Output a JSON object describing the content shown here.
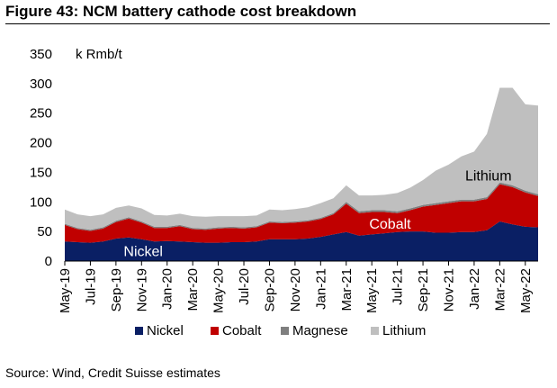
{
  "figure": {
    "title": "Figure 43: NCM battery cathode cost breakdown",
    "source": "Source: Wind, Credit Suisse estimates"
  },
  "chart_data": {
    "type": "area",
    "stacked": true,
    "unit_label": "k Rmb/t",
    "ylim": [
      0,
      350
    ],
    "y_ticks": [
      0,
      50,
      100,
      150,
      200,
      250,
      300,
      350
    ],
    "x_tick_labels": [
      "May-19",
      "Jul-19",
      "Sep-19",
      "Nov-19",
      "Jan-20",
      "Mar-20",
      "May-20",
      "Jul-20",
      "Sep-20",
      "Nov-20",
      "Jan-21",
      "Mar-21",
      "May-21",
      "Jul-21",
      "Sep-21",
      "Nov-21",
      "Jan-22",
      "Mar-22",
      "May-22"
    ],
    "x": [
      "May-19",
      "Jun-19",
      "Jul-19",
      "Aug-19",
      "Sep-19",
      "Oct-19",
      "Nov-19",
      "Dec-19",
      "Jan-20",
      "Feb-20",
      "Mar-20",
      "Apr-20",
      "May-20",
      "Jun-20",
      "Jul-20",
      "Aug-20",
      "Sep-20",
      "Oct-20",
      "Nov-20",
      "Dec-20",
      "Jan-21",
      "Feb-21",
      "Mar-21",
      "Apr-21",
      "May-21",
      "Jun-21",
      "Jul-21",
      "Aug-21",
      "Sep-21",
      "Oct-21",
      "Nov-21",
      "Dec-21",
      "Jan-22",
      "Feb-22",
      "Mar-22",
      "Apr-22",
      "May-22",
      "Jun-22"
    ],
    "series": [
      {
        "name": "Nickel",
        "color": "#0a1f64",
        "values": [
          33,
          32,
          31,
          33,
          38,
          40,
          37,
          33,
          34,
          33,
          32,
          31,
          31,
          32,
          32,
          33,
          37,
          37,
          37,
          38,
          41,
          45,
          49,
          43,
          45,
          47,
          49,
          50,
          50,
          48,
          48,
          49,
          49,
          52,
          67,
          62,
          58,
          57
        ]
      },
      {
        "name": "Cobalt",
        "color": "#c00000",
        "values": [
          28,
          22,
          20,
          22,
          28,
          32,
          28,
          23,
          22,
          26,
          22,
          22,
          24,
          24,
          23,
          24,
          28,
          27,
          28,
          29,
          30,
          34,
          48,
          38,
          38,
          36,
          32,
          36,
          42,
          47,
          50,
          52,
          52,
          53,
          63,
          63,
          58,
          53
        ]
      },
      {
        "name": "Magnese",
        "color": "#7f7f7f",
        "values": [
          2,
          2,
          2,
          2,
          2,
          2,
          2,
          2,
          2,
          2,
          2,
          2,
          2,
          2,
          2,
          2,
          2,
          2,
          2,
          2,
          2,
          2,
          3,
          3,
          3,
          3,
          3,
          3,
          3,
          3,
          3,
          3,
          3,
          3,
          3,
          3,
          3,
          3
        ]
      },
      {
        "name": "Lithium",
        "color": "#bfbfbf",
        "values": [
          24,
          23,
          23,
          22,
          22,
          20,
          22,
          20,
          19,
          19,
          20,
          20,
          19,
          18,
          19,
          18,
          20,
          20,
          21,
          22,
          25,
          25,
          28,
          27,
          25,
          26,
          31,
          35,
          42,
          55,
          62,
          73,
          81,
          107,
          160,
          165,
          146,
          150
        ]
      }
    ],
    "area_labels": [
      {
        "series": "Nickel",
        "text": "Nickel"
      },
      {
        "series": "Cobalt",
        "text": "Cobalt"
      },
      {
        "series": "Lithium",
        "text": "Lithium"
      }
    ],
    "legend": {
      "position": "bottom",
      "items": [
        "Nickel",
        "Cobalt",
        "Magnese",
        "Lithium"
      ]
    },
    "grid": false
  }
}
